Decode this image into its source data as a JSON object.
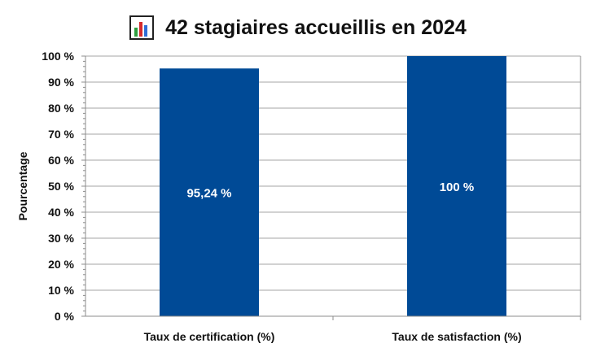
{
  "chart_data": {
    "type": "bar",
    "title": "42 stagiaires accueillis en 2024",
    "title_icon": "bar-chart-icon",
    "xlabel": "",
    "ylabel": "Pourcentage",
    "categories": [
      "Taux de certification (%)",
      "Taux de satisfaction (%)"
    ],
    "values": [
      95.24,
      100
    ],
    "value_labels": [
      "95,24 %",
      "100 %"
    ],
    "ylim": [
      0,
      100
    ],
    "y_ticks": [
      0,
      10,
      20,
      30,
      40,
      50,
      60,
      70,
      80,
      90,
      100
    ],
    "y_tick_labels": [
      "0 %",
      "10 %",
      "20 %",
      "30 %",
      "40 %",
      "50 %",
      "60 %",
      "70 %",
      "80 %",
      "90 %",
      "100 %"
    ],
    "grid": true,
    "legend": "none",
    "colors": {
      "bar": "#004A96",
      "grid": "#A6A6A6",
      "axis": "#8C8C8C",
      "value_label": "#FFFFFF"
    }
  }
}
